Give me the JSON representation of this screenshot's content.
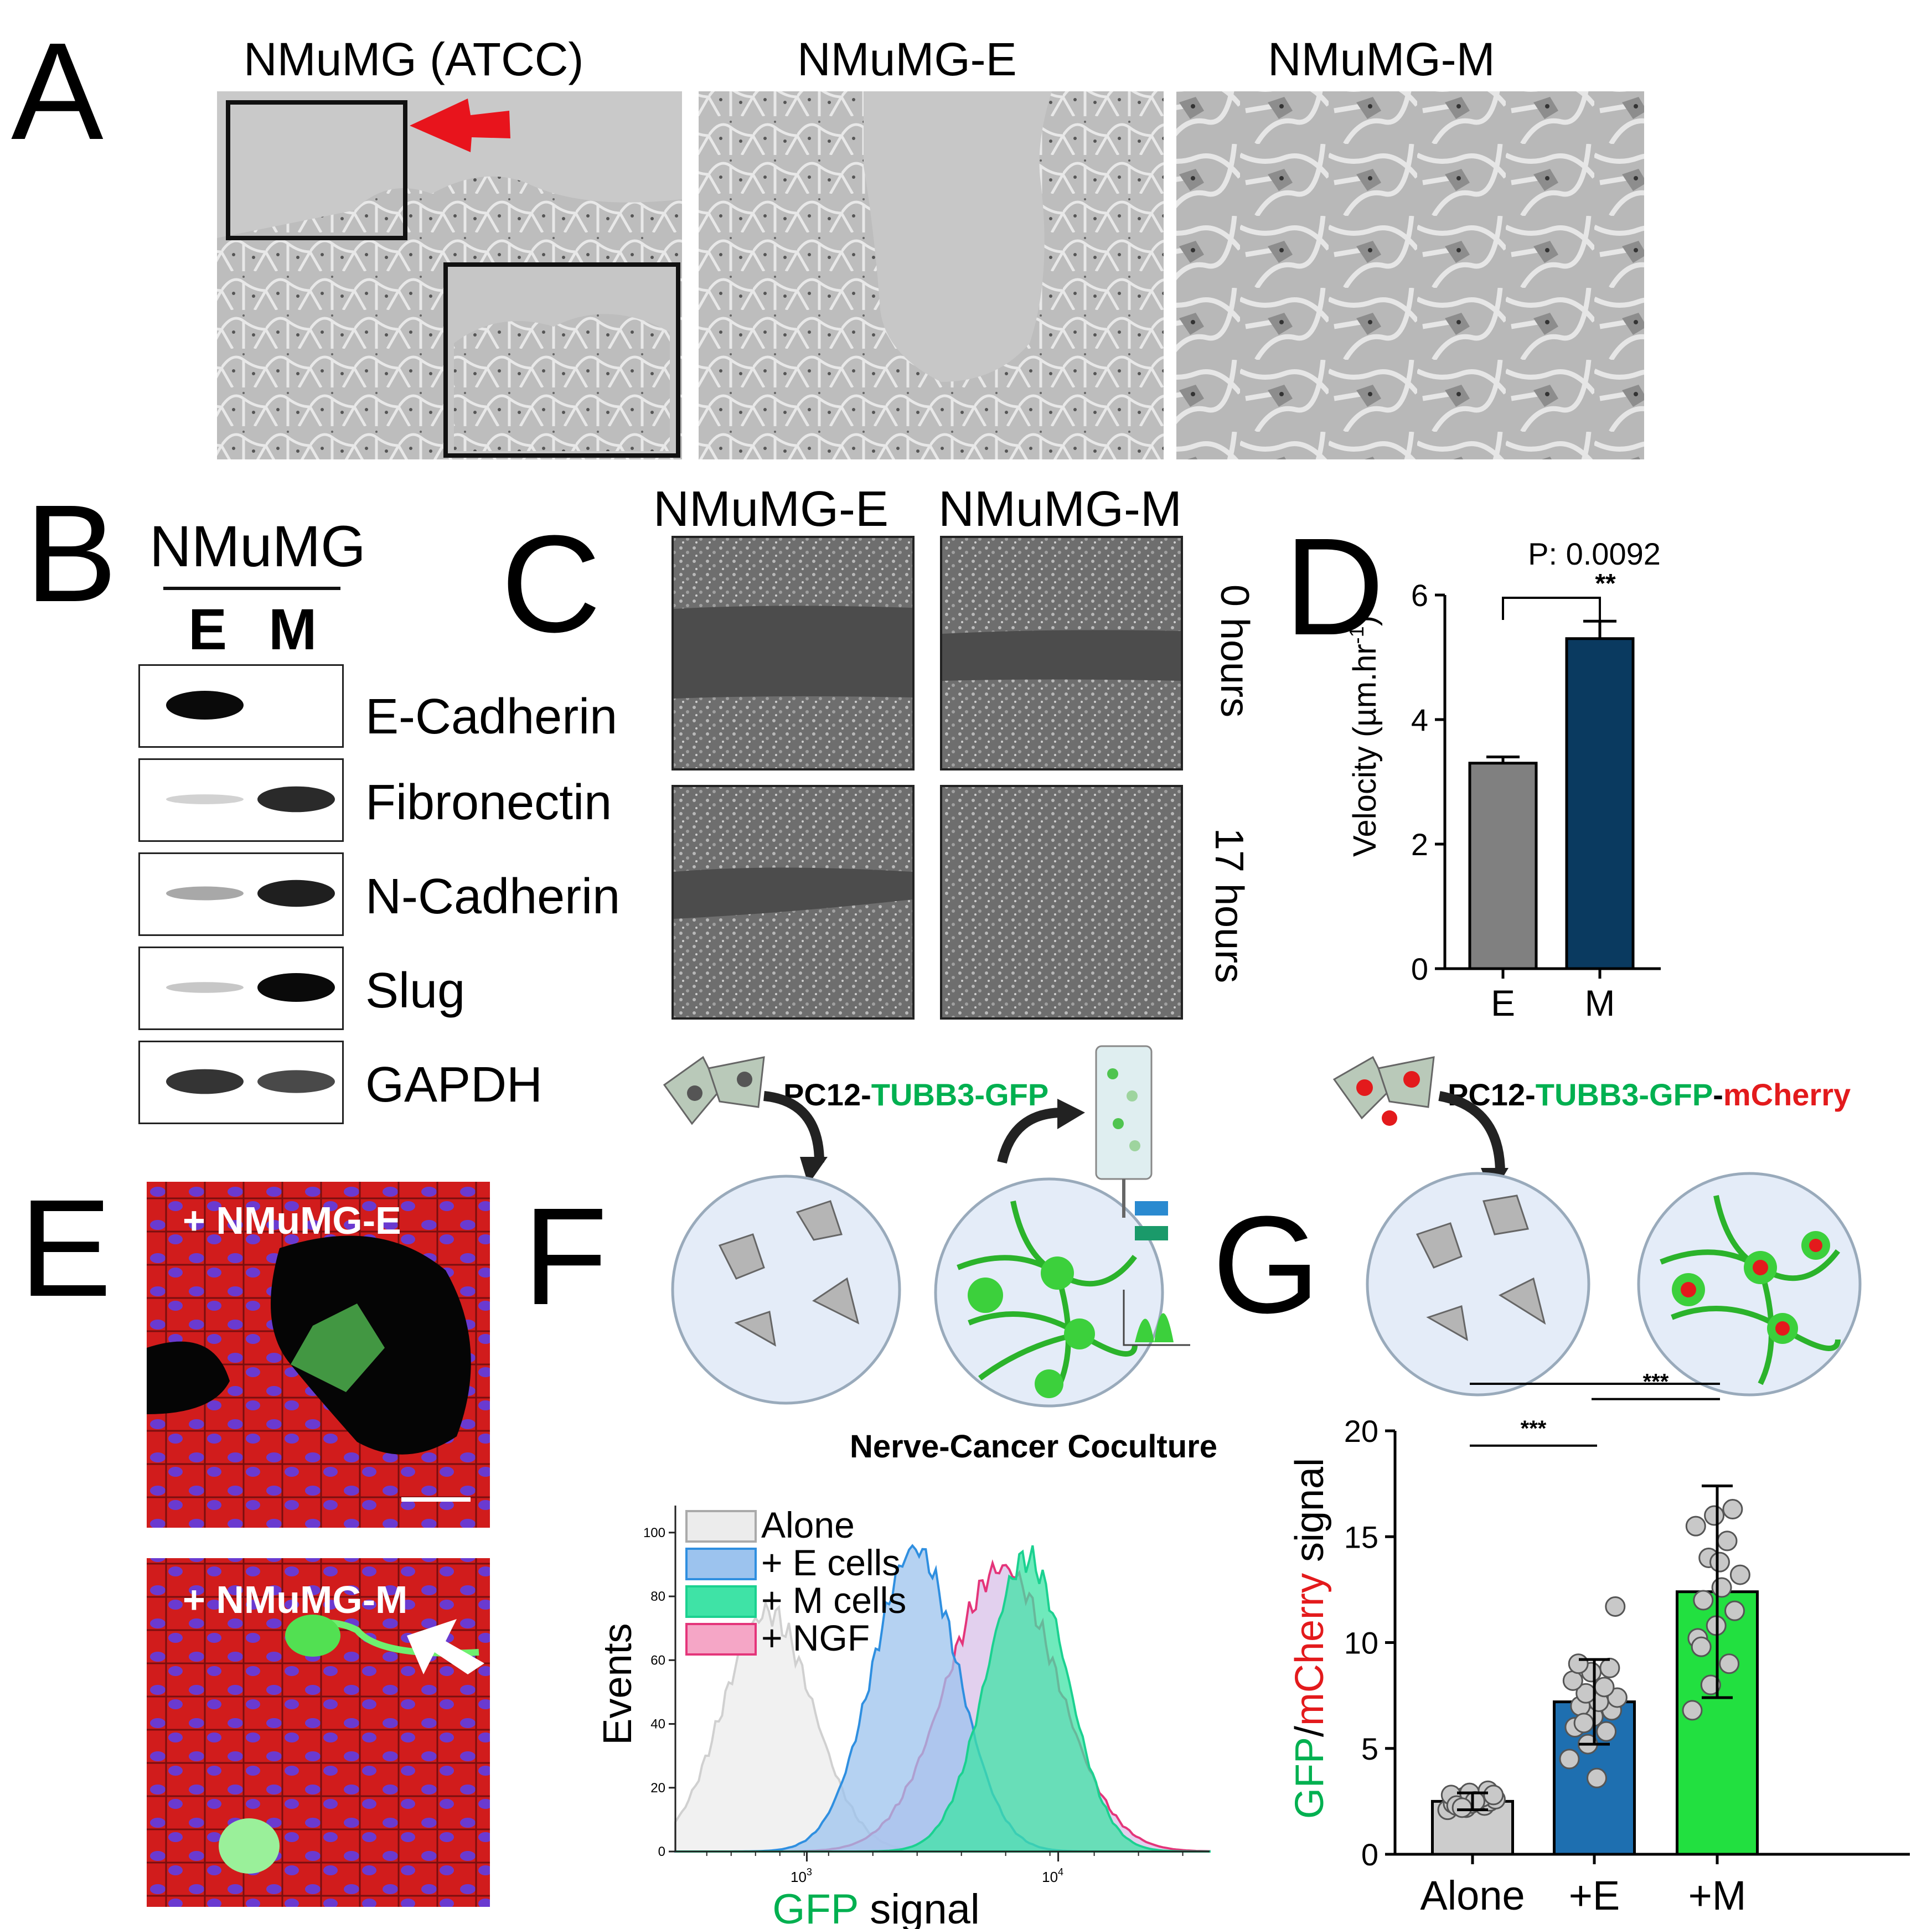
{
  "panel_labels": {
    "A": "A",
    "B": "B",
    "C": "C",
    "D": "D",
    "E": "E",
    "F": "F",
    "G": "G"
  },
  "panel_a": {
    "titles": [
      "NMuMG (ATCC)",
      "NMuMG-E",
      "NMuMG-M"
    ]
  },
  "panel_b": {
    "header": "NMuMG",
    "lanes": [
      "E",
      "M"
    ],
    "proteins": [
      {
        "name": "E-Cadherin",
        "e": 1.0,
        "m": 0.0
      },
      {
        "name": "Fibronectin",
        "e": 0.05,
        "m": 0.85
      },
      {
        "name": "N-Cadherin",
        "e": 0.25,
        "m": 0.9
      },
      {
        "name": "Slug",
        "e": 0.1,
        "m": 1.0
      },
      {
        "name": "GAPDH",
        "e": 0.8,
        "m": 0.7
      }
    ]
  },
  "panel_c": {
    "columns": [
      "NMuMG-E",
      "NMuMG-M"
    ],
    "rows": [
      "0 hours",
      "17 hours"
    ]
  },
  "panel_e": {
    "labels": [
      "+ NMuMG-E",
      "+ NMuMG-M"
    ]
  },
  "panel_f": {
    "schematic_label_prefix": "PC12-",
    "schematic_label_gfp": "TUBB3-GFP",
    "subtitle": "Nerve-Cancer Coculture"
  },
  "panel_g": {
    "schematic_label_prefix": "PC12-",
    "schematic_label_gfp": "TUBB3-GFP",
    "schematic_label_sep": "-",
    "schematic_label_mcherry": "mCherry"
  },
  "colors": {
    "gfp_green": "#00b050",
    "mcherry_red": "#e31a1c",
    "bar_e_gray": "#808080",
    "bar_m_navy": "#0a3a60",
    "bar_blue": "#1e6fb0",
    "bar_green": "#22e040",
    "bar_light": "#cccccc"
  },
  "chart_data": [
    {
      "panel": "D",
      "type": "bar",
      "categories": [
        "E",
        "M"
      ],
      "values": [
        3.3,
        5.3
      ],
      "errors": [
        0.1,
        0.28
      ],
      "ylabel": "Velocity (µm.hr",
      "ylabel_sup": "-1",
      "ylabel_close": ")",
      "ylim": [
        0,
        6
      ],
      "yticks": [
        0,
        2,
        4,
        6
      ],
      "annotation_p": "P: 0.0092",
      "annotation_sig": "**"
    },
    {
      "panel": "F",
      "type": "area",
      "xlabel_gfp": "GFP",
      "xlabel_rest": " signal",
      "ylabel": "Events",
      "yticks": [
        0,
        20,
        40,
        60,
        80,
        100
      ],
      "xtick_labels": [
        "10",
        "3",
        "10",
        "4"
      ],
      "xscale": "log",
      "legend": [
        "Alone",
        "+ E cells",
        "+ M cells",
        "+ NGF"
      ],
      "legend_placement": "top-left",
      "series_peaks": [
        {
          "name": "Alone",
          "peak_x": 700,
          "peak_y": 75
        },
        {
          "name": "+ E cells",
          "peak_x": 2700,
          "peak_y": 95
        },
        {
          "name": "+ M cells",
          "peak_x": 7500,
          "peak_y": 92
        },
        {
          "name": "+ NGF",
          "peak_x": 6000,
          "peak_y": 89
        }
      ]
    },
    {
      "panel": "G",
      "type": "bar",
      "categories": [
        "Alone",
        "+E",
        "+M"
      ],
      "values": [
        2.5,
        7.2,
        12.4
      ],
      "errors": [
        0.4,
        2.0,
        5.0
      ],
      "ylabel_gfp": "GFP",
      "ylabel_sep": "/",
      "ylabel_mcherry": "mCherry",
      "ylabel_rest": " signal",
      "ylim": [
        0,
        20
      ],
      "yticks": [
        0,
        5,
        10,
        15,
        20
      ],
      "points": [
        [
          2.1,
          2.2,
          2.3,
          2.4,
          2.4,
          2.5,
          2.5,
          2.6,
          2.6,
          2.7,
          2.7,
          2.8,
          2.9,
          3.0,
          2.3,
          2.5,
          2.8,
          2.2
        ],
        [
          4.5,
          5.2,
          5.8,
          6.0,
          6.5,
          6.8,
          7.0,
          7.2,
          7.4,
          7.6,
          7.9,
          8.2,
          8.6,
          8.8,
          9.0,
          3.6,
          11.7,
          6.2
        ],
        [
          6.8,
          8.0,
          9.0,
          10.2,
          10.8,
          11.5,
          12.0,
          12.6,
          13.2,
          14.0,
          14.8,
          15.5,
          16.0,
          16.3,
          9.8,
          13.8
        ]
      ],
      "significance": [
        {
          "from": 0,
          "to": 1,
          "label": "***"
        },
        {
          "from": 1,
          "to": 2,
          "label": "***"
        },
        {
          "from": 0,
          "to": 2,
          "label": "***"
        }
      ]
    }
  ]
}
